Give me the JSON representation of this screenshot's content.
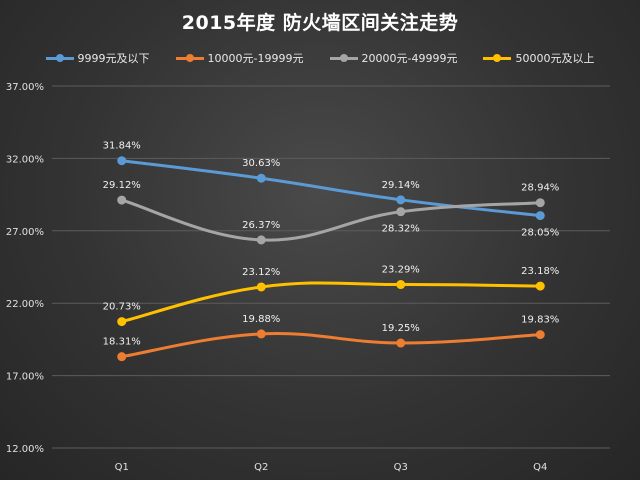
{
  "chart_data": {
    "type": "line",
    "title": "2015年度 防火墙区间关注走势",
    "categories": [
      "Q1",
      "Q2",
      "Q3",
      "Q4"
    ],
    "series": [
      {
        "name": "9999元及以下",
        "color": "#5b9bd5",
        "values": [
          31.84,
          30.63,
          29.14,
          28.05
        ],
        "labels": [
          "31.84%",
          "30.63%",
          "29.14%",
          "28.05%"
        ]
      },
      {
        "name": "10000元-19999元",
        "color": "#ed7d31",
        "values": [
          18.31,
          19.88,
          19.25,
          19.83
        ],
        "labels": [
          "18.31%",
          "19.88%",
          "19.25%",
          "19.83%"
        ]
      },
      {
        "name": "20000元-49999元",
        "color": "#a5a5a5",
        "values": [
          29.12,
          26.37,
          28.32,
          28.94
        ],
        "labels": [
          "29.12%",
          "26.37%",
          "28.32%",
          "28.94%"
        ]
      },
      {
        "name": "50000元及以上",
        "color": "#ffc000",
        "values": [
          20.73,
          23.12,
          23.29,
          23.18
        ],
        "labels": [
          "20.73%",
          "23.12%",
          "23.29%",
          "23.18%"
        ]
      }
    ],
    "y_ticks": [
      "12.00%",
      "17.00%",
      "22.00%",
      "27.00%",
      "32.00%",
      "37.00%"
    ],
    "y_tick_values": [
      12,
      17,
      22,
      27,
      32,
      37
    ],
    "ylim": [
      12,
      37
    ],
    "grid": true,
    "legend_position": "top"
  }
}
